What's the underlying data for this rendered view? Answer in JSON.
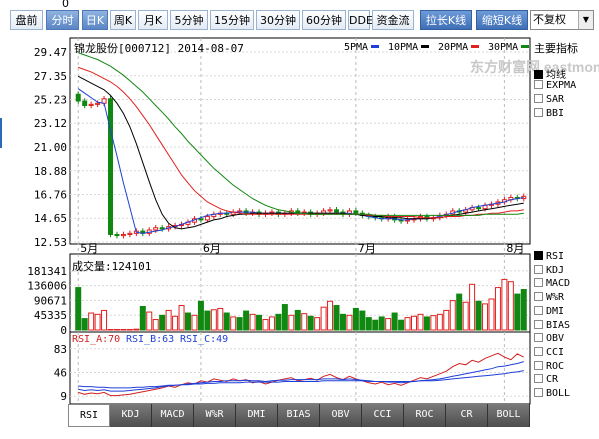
{
  "top_number": "0",
  "toolbar": {
    "buttons": [
      "盘前",
      "分时",
      "日K",
      "周K",
      "月K",
      "5分钟",
      "15分钟",
      "30分钟",
      "60分钟",
      "DDE",
      "资金流",
      "拉长K线",
      "缩短K线"
    ],
    "adjust_select": "不复权"
  },
  "chart_title": "锦龙股份[000712] 2014-08-07",
  "ma_legend": [
    {
      "label": "5PMA",
      "color": "#1f3fd8"
    },
    {
      "label": "10PMA",
      "color": "#000000"
    },
    {
      "label": "20PMA",
      "color": "#e02020"
    },
    {
      "label": "30PMA",
      "color": "#118811"
    }
  ],
  "watermark": "东方财富网 eastmoney.com",
  "main_indicator_title": "主要指标",
  "main_indicators": [
    {
      "label": "均线",
      "checked": true
    },
    {
      "label": "EXPMA",
      "checked": false
    },
    {
      "label": "SAR",
      "checked": false
    },
    {
      "label": "BBI",
      "checked": false
    }
  ],
  "sub_indicators": [
    "RSI",
    "KDJ",
    "MACD",
    "W%R",
    "DMI",
    "BIAS",
    "OBV",
    "CCI",
    "ROC",
    "CR",
    "BOLL"
  ],
  "sub_selected": "RSI",
  "volume_title": "成交量:124101",
  "rsi_legend": [
    {
      "label": "RSI_A:70",
      "color": "#d02020"
    },
    {
      "label": "RSI_B:63",
      "color": "#1f3fd8"
    },
    {
      "label": "RSI_C:49",
      "color": "#1f3fd8"
    }
  ],
  "tabs": [
    "RSI",
    "KDJ",
    "MACD",
    "W%R",
    "DMI",
    "BIAS",
    "OBV",
    "CCI",
    "ROC",
    "CR",
    "BOLL"
  ],
  "chart_data": [
    {
      "type": "candlestick",
      "title": "锦龙股份[000712] 2014-08-07",
      "y_ticks": [
        29.47,
        27.35,
        25.23,
        23.12,
        21.0,
        18.88,
        16.76,
        14.65,
        12.53
      ],
      "ylim": [
        12.53,
        29.47
      ],
      "x_ticks": [
        "5月",
        "6月",
        "7月",
        "8月"
      ],
      "x_tick_index": [
        0,
        19,
        43,
        66
      ],
      "candles_close": [
        25.1,
        24.7,
        24.8,
        24.9,
        25.3,
        13.2,
        13.1,
        13.2,
        13.3,
        13.5,
        13.3,
        13.6,
        13.8,
        13.7,
        13.9,
        14.0,
        14.1,
        14.3,
        14.6,
        14.5,
        14.8,
        15.0,
        15.1,
        15.0,
        15.2,
        15.3,
        15.1,
        15.2,
        15.0,
        15.1,
        15.2,
        15.0,
        15.1,
        15.3,
        15.1,
        15.2,
        15.0,
        15.1,
        15.3,
        15.4,
        15.2,
        15.0,
        15.3,
        15.1,
        14.9,
        14.8,
        14.7,
        14.6,
        14.8,
        14.5,
        14.4,
        14.5,
        14.6,
        14.8,
        14.6,
        14.7,
        14.9,
        15.0,
        15.3,
        15.2,
        15.4,
        15.6,
        15.5,
        15.8,
        15.9,
        16.1,
        16.3,
        16.5,
        16.4,
        16.6
      ],
      "series": [
        {
          "name": "5PMA",
          "values": [
            26.2,
            25.8,
            25.4,
            25.0,
            24.9,
            22.5,
            20.2,
            17.8,
            15.6,
            13.4,
            13.3,
            13.4,
            13.5,
            13.6,
            13.8,
            13.9,
            14.1,
            14.3,
            14.5,
            14.7,
            14.9,
            15.0,
            15.1,
            15.1,
            15.2,
            15.2,
            15.2,
            15.2,
            15.1,
            15.1,
            15.1,
            15.1,
            15.1,
            15.1,
            15.1,
            15.1,
            15.1,
            15.1,
            15.1,
            15.1,
            15.1,
            15.1,
            15.1,
            15.0,
            14.9,
            14.8,
            14.7,
            14.6,
            14.6,
            14.6,
            14.5,
            14.5,
            14.6,
            14.6,
            14.6,
            14.7,
            14.8,
            15.0,
            15.1,
            15.3,
            15.4,
            15.6,
            15.7,
            15.8,
            15.9,
            16.0,
            16.1,
            16.3,
            16.4,
            16.5
          ]
        },
        {
          "name": "10PMA",
          "values": [
            27.3,
            27.0,
            26.7,
            26.4,
            26.1,
            25.6,
            24.9,
            24.0,
            22.8,
            21.3,
            19.6,
            17.9,
            16.3,
            15.0,
            14.2,
            13.8,
            13.7,
            13.8,
            13.9,
            14.1,
            14.3,
            14.5,
            14.6,
            14.8,
            14.9,
            15.0,
            15.0,
            15.1,
            15.1,
            15.1,
            15.1,
            15.1,
            15.1,
            15.1,
            15.1,
            15.1,
            15.1,
            15.1,
            15.1,
            15.1,
            15.1,
            15.1,
            15.0,
            15.0,
            14.9,
            14.9,
            14.8,
            14.8,
            14.7,
            14.7,
            14.7,
            14.6,
            14.6,
            14.6,
            14.6,
            14.7,
            14.7,
            14.8,
            14.9,
            15.0,
            15.1,
            15.2,
            15.3,
            15.4,
            15.5,
            15.6,
            15.7,
            15.8,
            15.9,
            16.0
          ]
        },
        {
          "name": "20PMA",
          "values": [
            28.1,
            27.9,
            27.7,
            27.4,
            27.1,
            26.8,
            26.4,
            25.9,
            25.3,
            24.6,
            23.8,
            23.0,
            22.1,
            21.2,
            20.3,
            19.4,
            18.5,
            17.8,
            17.1,
            16.6,
            16.1,
            15.8,
            15.5,
            15.3,
            15.2,
            15.1,
            15.0,
            15.0,
            15.0,
            15.0,
            15.0,
            15.0,
            15.0,
            15.0,
            15.0,
            15.0,
            15.0,
            15.0,
            15.0,
            15.0,
            15.0,
            15.0,
            15.0,
            15.0,
            15.0,
            14.9,
            14.9,
            14.9,
            14.8,
            14.8,
            14.8,
            14.8,
            14.8,
            14.7,
            14.7,
            14.7,
            14.7,
            14.8,
            14.8,
            14.8,
            14.9,
            14.9,
            15.0,
            15.0,
            15.1,
            15.1,
            15.2,
            15.3,
            15.3,
            15.4
          ]
        },
        {
          "name": "30PMA",
          "values": [
            29.4,
            29.2,
            29.0,
            28.8,
            28.5,
            28.2,
            27.8,
            27.4,
            26.9,
            26.4,
            25.9,
            25.3,
            24.7,
            24.1,
            23.5,
            22.8,
            22.2,
            21.5,
            20.9,
            20.3,
            19.7,
            19.1,
            18.6,
            18.1,
            17.6,
            17.2,
            16.8,
            16.4,
            16.1,
            15.8,
            15.6,
            15.4,
            15.3,
            15.2,
            15.1,
            15.1,
            15.0,
            15.0,
            15.0,
            15.0,
            15.0,
            15.0,
            15.0,
            15.0,
            15.0,
            15.0,
            14.9,
            14.9,
            14.9,
            14.9,
            14.9,
            14.9,
            14.9,
            14.9,
            14.9,
            14.9,
            14.9,
            14.9,
            14.9,
            14.9,
            14.9,
            14.9,
            14.9,
            15.0,
            15.0,
            15.0,
            15.0,
            15.0,
            15.0,
            15.1
          ]
        }
      ]
    },
    {
      "type": "bar",
      "title": "成交量:124101",
      "y_ticks": [
        181341,
        136006,
        90671,
        45335,
        0
      ],
      "ylim": [
        0,
        190000
      ],
      "values": [
        130000,
        35000,
        52000,
        48000,
        60000,
        1500,
        1500,
        1500,
        1500,
        2500,
        72000,
        55000,
        32000,
        45000,
        60000,
        42000,
        75000,
        52000,
        45000,
        88000,
        58000,
        62000,
        66000,
        52000,
        40000,
        38000,
        58000,
        48000,
        45000,
        32000,
        40000,
        48000,
        78000,
        45000,
        60000,
        50000,
        42000,
        38000,
        70000,
        88000,
        75000,
        48000,
        45000,
        66000,
        58000,
        38000,
        30000,
        40000,
        35000,
        52000,
        30000,
        38000,
        42000,
        48000,
        40000,
        44000,
        48000,
        60000,
        90000,
        110000,
        85000,
        140000,
        88000,
        80000,
        95000,
        130000,
        155000,
        148000,
        110000,
        124101
      ],
      "up": [
        false,
        false,
        true,
        true,
        true,
        true,
        true,
        true,
        true,
        true,
        false,
        true,
        true,
        false,
        true,
        true,
        true,
        false,
        true,
        false,
        false,
        true,
        true,
        false,
        true,
        false,
        false,
        true,
        false,
        true,
        true,
        false,
        false,
        true,
        false,
        true,
        false,
        true,
        true,
        true,
        false,
        false,
        true,
        false,
        false,
        false,
        false,
        false,
        true,
        false,
        false,
        true,
        true,
        true,
        false,
        true,
        true,
        true,
        true,
        false,
        true,
        true,
        false,
        true,
        true,
        true,
        true,
        true,
        false,
        false
      ]
    },
    {
      "type": "line",
      "title": "RSI",
      "y_ticks": [
        83,
        46,
        9
      ],
      "ylim": [
        0,
        92
      ],
      "series": [
        {
          "name": "RSI_A",
          "values": [
            15,
            12,
            14,
            13,
            15,
            10,
            10,
            11,
            12,
            14,
            16,
            18,
            20,
            22,
            25,
            23,
            27,
            30,
            28,
            33,
            31,
            36,
            34,
            32,
            36,
            33,
            35,
            30,
            32,
            28,
            31,
            34,
            36,
            38,
            33,
            35,
            37,
            34,
            40,
            43,
            38,
            35,
            40,
            36,
            33,
            30,
            28,
            31,
            27,
            29,
            26,
            30,
            34,
            38,
            36,
            40,
            44,
            48,
            55,
            60,
            58,
            65,
            62,
            68,
            72,
            76,
            70,
            66,
            75,
            70
          ]
        },
        {
          "name": "RSI_B",
          "values": [
            20,
            18,
            19,
            18,
            19,
            17,
            17,
            17,
            18,
            19,
            20,
            21,
            22,
            24,
            25,
            26,
            27,
            28,
            29,
            30,
            31,
            32,
            32,
            33,
            33,
            33,
            34,
            33,
            33,
            32,
            33,
            34,
            34,
            35,
            35,
            35,
            35,
            35,
            36,
            36,
            36,
            35,
            36,
            35,
            34,
            33,
            32,
            32,
            31,
            31,
            30,
            31,
            32,
            33,
            34,
            35,
            36,
            38,
            40,
            42,
            44,
            46,
            48,
            50,
            52,
            55,
            56,
            58,
            60,
            63
          ]
        },
        {
          "name": "RSI_C",
          "values": [
            25,
            24,
            24,
            23,
            23,
            22,
            22,
            22,
            22,
            23,
            23,
            24,
            24,
            25,
            26,
            26,
            27,
            27,
            28,
            28,
            29,
            29,
            30,
            30,
            30,
            30,
            31,
            31,
            31,
            31,
            31,
            31,
            32,
            32,
            32,
            32,
            32,
            32,
            33,
            33,
            33,
            33,
            33,
            33,
            33,
            32,
            32,
            32,
            32,
            32,
            32,
            32,
            32,
            33,
            33,
            33,
            34,
            35,
            36,
            37,
            38,
            39,
            40,
            41,
            42,
            43,
            44,
            46,
            47,
            49
          ]
        }
      ]
    }
  ]
}
